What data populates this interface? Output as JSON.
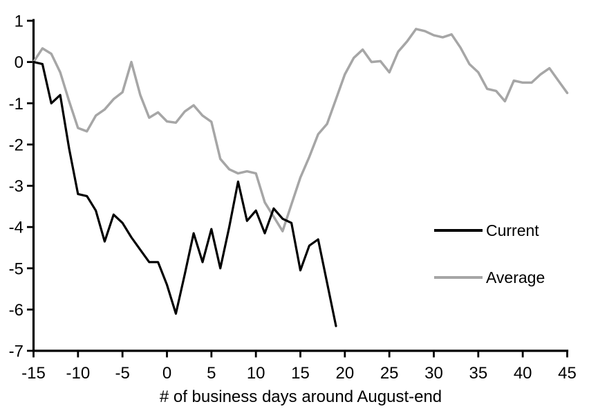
{
  "chart_data": {
    "type": "line",
    "title": "",
    "xlabel": "# of business days around August-end",
    "ylabel": "",
    "xlim": [
      -15,
      45
    ],
    "ylim": [
      -7,
      1
    ],
    "xticks": [
      -15,
      -10,
      -5,
      0,
      5,
      10,
      15,
      20,
      25,
      30,
      35,
      40,
      45
    ],
    "yticks": [
      1,
      0,
      -1,
      -2,
      -3,
      -4,
      -5,
      -6,
      -7
    ],
    "grid": false,
    "legend_position": "right-middle",
    "axis_color": "#000000",
    "series": [
      {
        "name": "Current",
        "color": "#000000",
        "x": [
          -15,
          -14,
          -13,
          -12,
          -11,
          -10,
          -9,
          -8,
          -7,
          -6,
          -5,
          -4,
          -3,
          -2,
          -1,
          0,
          1,
          2,
          3,
          4,
          5,
          6,
          7,
          8,
          9,
          10,
          11,
          12,
          13,
          14,
          15,
          16,
          17,
          18,
          19
        ],
        "values": [
          0,
          -0.05,
          -1.0,
          -0.8,
          -2.1,
          -3.2,
          -3.25,
          -3.6,
          -4.35,
          -3.7,
          -3.9,
          -4.25,
          -4.55,
          -4.85,
          -4.85,
          -5.4,
          -6.1,
          -5.15,
          -4.15,
          -4.85,
          -4.05,
          -5.0,
          -4.0,
          -2.9,
          -3.85,
          -3.6,
          -4.15,
          -3.55,
          -3.8,
          -3.9,
          -5.05,
          -4.45,
          -4.3,
          -5.35,
          -6.4
        ]
      },
      {
        "name": "Average",
        "color": "#A6A6A6",
        "x": [
          -15,
          -14,
          -13,
          -12,
          -11,
          -10,
          -9,
          -8,
          -7,
          -6,
          -5,
          -4,
          -3,
          -2,
          -1,
          0,
          1,
          2,
          3,
          4,
          5,
          6,
          7,
          8,
          9,
          10,
          11,
          12,
          13,
          14,
          15,
          16,
          17,
          18,
          19,
          20,
          21,
          22,
          23,
          24,
          25,
          26,
          27,
          28,
          29,
          30,
          31,
          32,
          33,
          34,
          35,
          36,
          37,
          38,
          39,
          40,
          41,
          42,
          43,
          44,
          45
        ],
        "values": [
          0,
          0.33,
          0.2,
          -0.25,
          -0.95,
          -1.6,
          -1.68,
          -1.3,
          -1.15,
          -0.9,
          -0.73,
          0.0,
          -0.8,
          -1.35,
          -1.22,
          -1.44,
          -1.47,
          -1.2,
          -1.05,
          -1.3,
          -1.45,
          -2.35,
          -2.6,
          -2.7,
          -2.65,
          -2.7,
          -3.4,
          -3.75,
          -4.1,
          -3.45,
          -2.8,
          -2.3,
          -1.75,
          -1.5,
          -0.9,
          -0.3,
          0.1,
          0.3,
          0.0,
          0.02,
          -0.25,
          0.25,
          0.5,
          0.8,
          0.75,
          0.65,
          0.6,
          0.67,
          0.35,
          -0.05,
          -0.25,
          -0.65,
          -0.7,
          -0.95,
          -0.45,
          -0.5,
          -0.5,
          -0.3,
          -0.15,
          -0.45,
          -0.75
        ]
      }
    ]
  },
  "legend": {
    "items": [
      {
        "label": "Current"
      },
      {
        "label": "Average"
      }
    ]
  }
}
